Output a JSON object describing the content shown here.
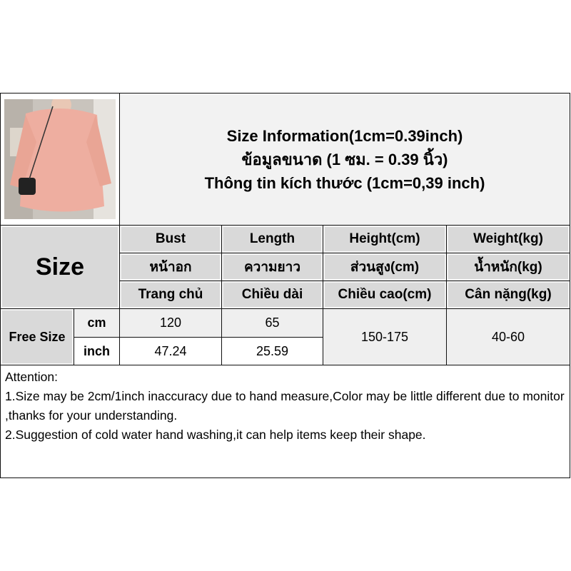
{
  "title": {
    "line1": "Size Information(1cm=0.39inch)",
    "line2": "ข้อมูลขนาด (1 ซม. = 0.39 นิ้ว)",
    "line3": "Thông tin kích thước (1cm=0,39 inch)"
  },
  "photo": {
    "description_icon": "product-photo-pink-sweater"
  },
  "size_label": "Size",
  "columns": [
    {
      "en": "Bust",
      "th": "หน้าอก",
      "vi": "Trang chủ"
    },
    {
      "en": "Length",
      "th": "ความยาว",
      "vi": "Chiều dài"
    },
    {
      "en": "Height(cm)",
      "th": "ส่วนสูง(cm)",
      "vi": "Chiều cao(cm)"
    },
    {
      "en": "Weight(kg)",
      "th": "น้ำหนัก(kg)",
      "vi": "Cân nặng(kg)"
    }
  ],
  "row": {
    "size": "Free Size",
    "cm_label": "cm",
    "inch_label": "inch",
    "bust_cm": "120",
    "length_cm": "65",
    "bust_inch": "47.24",
    "length_inch": "25.59",
    "height": "150-175",
    "weight": "40-60"
  },
  "attention": {
    "heading": "Attention:",
    "line1": "1.Size may be 2cm/1inch inaccuracy due to hand measure,Color may be little different due to monitor ,thanks for your understanding.",
    "line2": "2.Suggestion of cold water hand washing,it can help items keep their shape."
  }
}
